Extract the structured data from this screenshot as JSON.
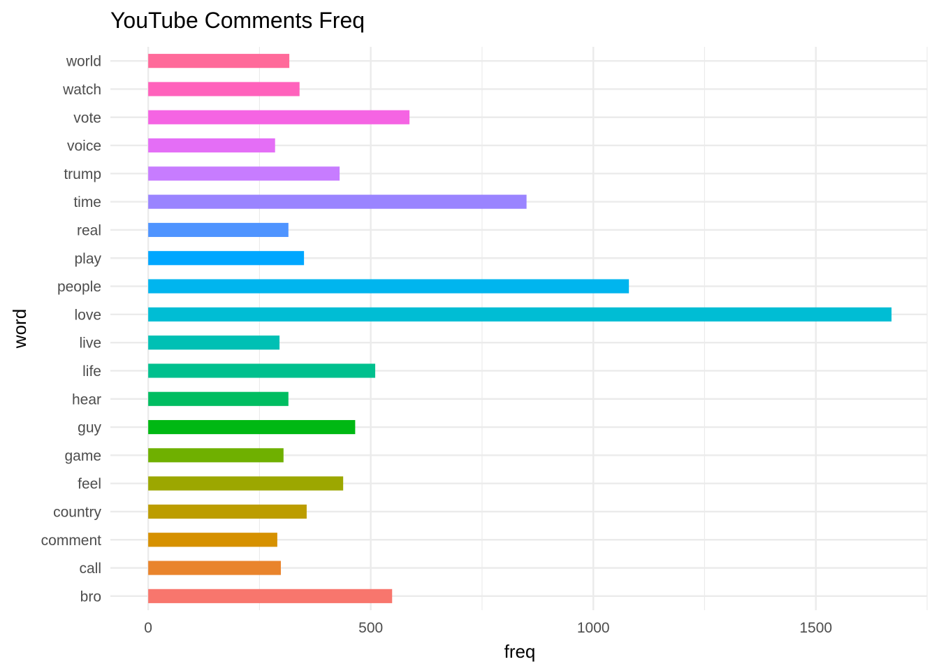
{
  "chart_data": {
    "type": "bar",
    "orientation": "horizontal",
    "title": "YouTube Comments Freq",
    "xlabel": "freq",
    "ylabel": "word",
    "categories": [
      "bro",
      "call",
      "comment",
      "country",
      "feel",
      "game",
      "guy",
      "hear",
      "life",
      "live",
      "love",
      "people",
      "play",
      "real",
      "time",
      "trump",
      "voice",
      "vote",
      "watch",
      "world"
    ],
    "values": [
      548,
      298,
      290,
      356,
      438,
      304,
      465,
      315,
      510,
      295,
      1670,
      1080,
      350,
      315,
      850,
      430,
      285,
      587,
      340,
      317
    ],
    "colors": [
      "#F8766D",
      "#E9842C",
      "#D69100",
      "#BC9D00",
      "#9CA700",
      "#6FB000",
      "#00B813",
      "#00BD61",
      "#00C08E",
      "#00C0B4",
      "#00BDD4",
      "#00B5EE",
      "#00A7FF",
      "#4F94FF",
      "#9A84FF",
      "#C77CFF",
      "#E46EF6",
      "#F564E3",
      "#FF62BC",
      "#FF6A9A"
    ],
    "xlim": [
      -85,
      1750
    ],
    "xticks": [
      0,
      500,
      1000,
      1500
    ],
    "xtick_labels": [
      "0",
      "500",
      "1000",
      "1500"
    ],
    "grid": true,
    "legend": "none"
  }
}
